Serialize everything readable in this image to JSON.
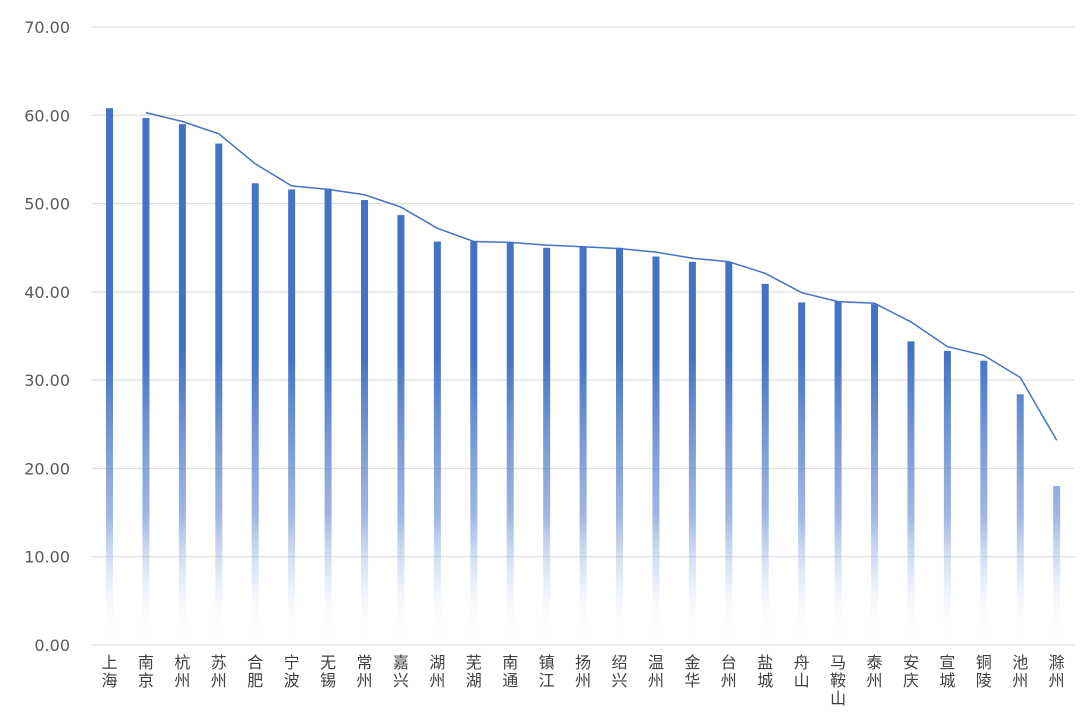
{
  "chart_data": {
    "type": "bar",
    "categories": [
      "上海",
      "南京",
      "杭州",
      "苏州",
      "合肥",
      "宁波",
      "无锡",
      "常州",
      "嘉兴",
      "湖州",
      "芜湖",
      "南通",
      "镇江",
      "扬州",
      "绍兴",
      "温州",
      "金华",
      "台州",
      "盐城",
      "舟山",
      "马鞍山",
      "泰州",
      "安庆",
      "宣城",
      "铜陵",
      "池州",
      "滁州"
    ],
    "series": [
      {
        "type": "bar",
        "values": [
          60.8,
          59.7,
          59.0,
          56.8,
          52.3,
          51.6,
          51.7,
          50.4,
          48.7,
          45.7,
          45.7,
          45.6,
          45.0,
          45.1,
          45.0,
          44.0,
          43.4,
          43.4,
          40.9,
          38.8,
          38.9,
          38.6,
          34.4,
          33.3,
          32.2,
          28.4,
          18.0
        ],
        "color": "#4472c4"
      },
      {
        "type": "line",
        "values": [
          null,
          60.3,
          59.3,
          57.9,
          54.5,
          52.0,
          51.6,
          51.0,
          49.6,
          47.2,
          45.7,
          45.6,
          45.3,
          45.1,
          44.9,
          44.5,
          43.8,
          43.4,
          42.1,
          39.9,
          38.9,
          38.7,
          36.6,
          33.8,
          32.8,
          30.3,
          23.2
        ],
        "color": "#4472c4"
      }
    ],
    "ylim": [
      0,
      70
    ],
    "yticks": [
      "0.00",
      "10.00",
      "20.00",
      "30.00",
      "40.00",
      "50.00",
      "60.00",
      "70.00"
    ],
    "grid": true,
    "legend": "none"
  }
}
